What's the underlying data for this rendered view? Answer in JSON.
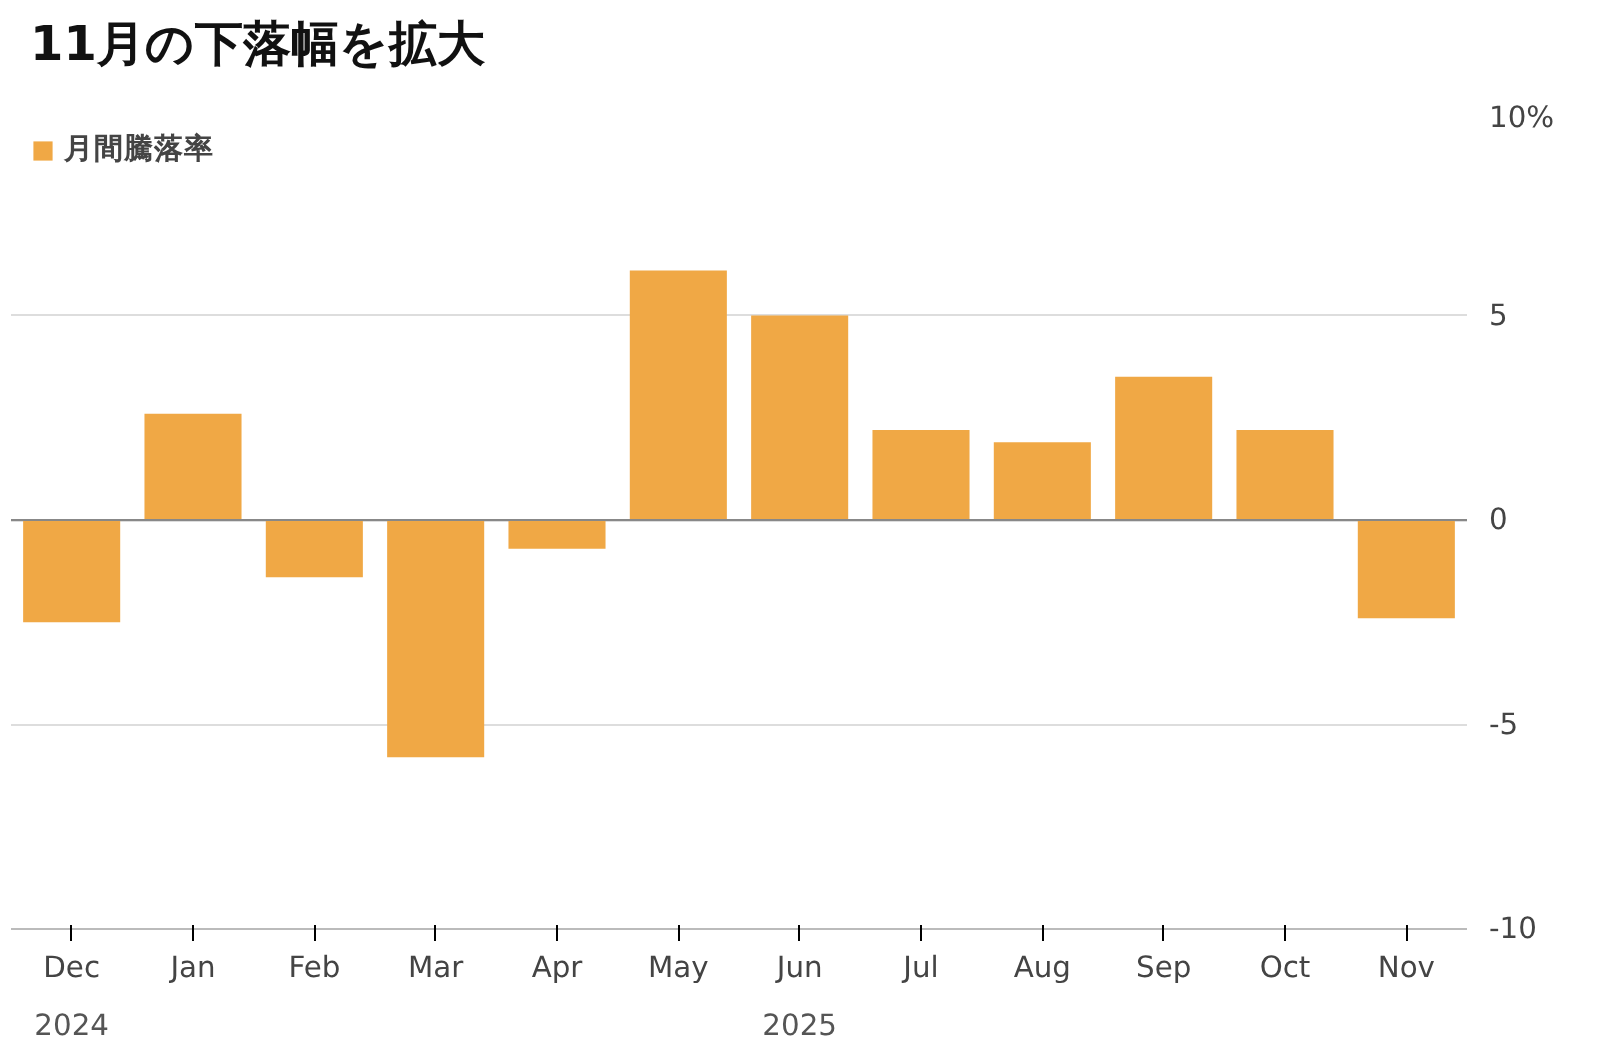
{
  "chart_data": {
    "type": "bar",
    "title": "11月の下落幅を拡大",
    "categories": [
      "Dec",
      "Jan",
      "Feb",
      "Mar",
      "Apr",
      "May",
      "Jun",
      "Jul",
      "Aug",
      "Sep",
      "Oct",
      "Nov"
    ],
    "series": [
      {
        "name": "月間騰落率",
        "color": "#f0a845",
        "values": [
          -2.5,
          2.6,
          -1.4,
          -5.8,
          -0.7,
          6.1,
          5.0,
          2.2,
          1.9,
          3.5,
          2.2,
          -2.4
        ]
      }
    ],
    "ylim": [
      -10,
      10
    ],
    "yticks": [
      {
        "value": 10,
        "label": "10%"
      },
      5,
      0,
      -5,
      -10
    ],
    "grid": "y",
    "legend": "top left",
    "annotations": [
      "2024",
      "2025"
    ]
  }
}
